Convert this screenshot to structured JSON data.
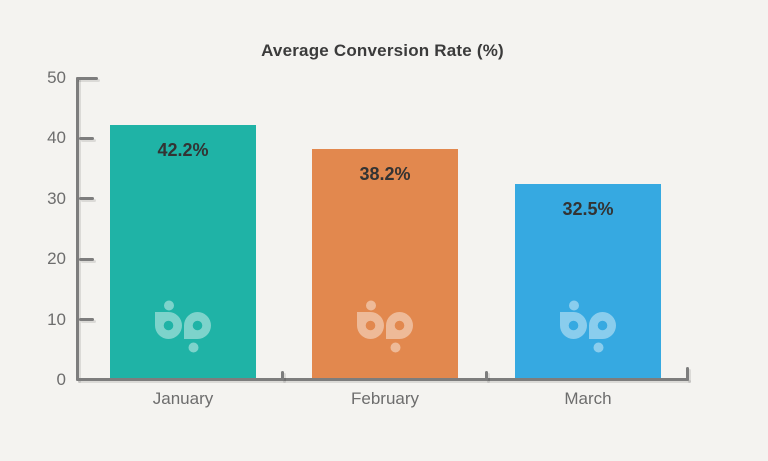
{
  "chart_data": {
    "type": "bar",
    "title": "Average Conversion Rate (%)",
    "categories": [
      "January",
      "February",
      "March"
    ],
    "values": [
      42.2,
      38.2,
      32.5
    ],
    "value_labels": [
      "42.2%",
      "38.2%",
      "32.5%"
    ],
    "colors": [
      "#1fb3a6",
      "#e2884e",
      "#36a9e1"
    ],
    "xlabel": "",
    "ylabel": "",
    "ylim": [
      0,
      50
    ],
    "y_tick_labels": [
      "50",
      "40",
      "30",
      "20",
      "10",
      "0"
    ],
    "grid": false,
    "legend": false
  },
  "style": {
    "background": "#f4f3f0",
    "axis_color": "#7d7d7d",
    "tick_label_color": "#6d6d6d",
    "title_color": "#3b3b3b",
    "value_label_color": "#333333",
    "watermark_color": "rgba(255,255,255,0.42)"
  },
  "watermark": {
    "name": "bp-logo"
  }
}
